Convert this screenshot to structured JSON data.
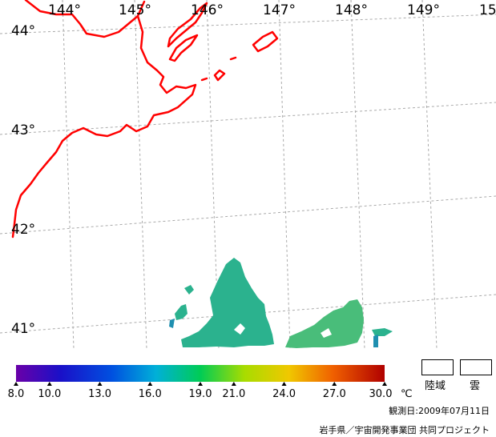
{
  "map": {
    "longitude_labels": [
      "144°",
      "145°",
      "146°",
      "147°",
      "148°",
      "149°",
      "15"
    ],
    "latitude_labels": [
      "44°",
      "43°",
      "42°",
      "41°"
    ],
    "colors": {
      "grid": "#aaaaaa",
      "coastline": "#ff0000",
      "sst_main": "#2bb28e",
      "sst_dark": "#1f8fb0",
      "sst_warm": "#58c86a"
    }
  },
  "legend": {
    "tick_labels": [
      "8.0",
      "10.0",
      "13.0",
      "16.0",
      "19.0",
      "21.0",
      "24.0",
      "27.0",
      "30.0"
    ],
    "tick_values": [
      8.0,
      10.0,
      13.0,
      16.0,
      19.0,
      21.0,
      24.0,
      27.0,
      30.0
    ],
    "range": [
      8.0,
      30.0
    ],
    "unit": "℃",
    "land_label": "陸域",
    "cloud_label": "雲"
  },
  "footer": {
    "observation_date": "観測日:2009年07月11日",
    "credit": "岩手県／宇宙開発事業団 共同プロジェクト"
  }
}
